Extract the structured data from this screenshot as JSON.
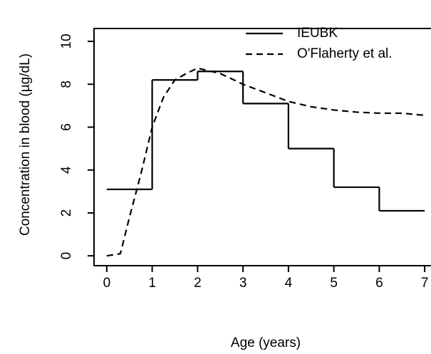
{
  "chart_data": {
    "type": "line",
    "xlabel": "Age (years)",
    "ylabel": "Concentration in blood (µg/dL)",
    "xlim": [
      -0.28,
      7.28
    ],
    "xticks": [
      0,
      1,
      2,
      3,
      4,
      5,
      6,
      7
    ],
    "ylim": [
      -0.46,
      10.6
    ],
    "yticks": [
      0,
      2,
      4,
      6,
      8,
      10
    ],
    "legend": "topright",
    "series": [
      {
        "name": "IEUBK",
        "color": "#000000",
        "style": "solid",
        "step": "post",
        "x": [
          0,
          1,
          2,
          3,
          4,
          5,
          6,
          7
        ],
        "values": [
          3.1,
          8.2,
          8.6,
          7.1,
          5.0,
          3.2,
          2.1,
          2.1
        ]
      },
      {
        "name": "O'Flaherty et al.",
        "color": "#000000",
        "style": "dashed",
        "x": [
          0,
          0.3,
          0.5,
          0.75,
          1,
          1.25,
          1.5,
          1.75,
          2,
          2.5,
          3,
          3.5,
          4,
          4.5,
          5,
          5.5,
          6,
          6.5,
          7
        ],
        "values": [
          0,
          0.1,
          1.8,
          3.8,
          6.0,
          7.4,
          8.2,
          8.5,
          8.75,
          8.5,
          8.0,
          7.6,
          7.2,
          6.95,
          6.8,
          6.7,
          6.65,
          6.65,
          6.55
        ]
      }
    ]
  }
}
